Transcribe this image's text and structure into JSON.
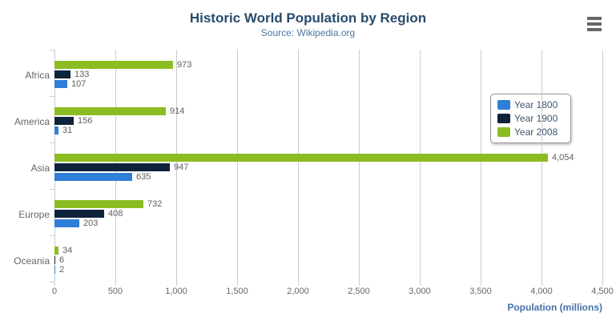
{
  "header": {
    "title": "Historic World Population by Region",
    "subtitle": "Source: Wikipedia.org",
    "menu_icon": "hamburger-icon"
  },
  "chart_data": {
    "type": "bar",
    "orientation": "horizontal",
    "title": "Historic World Population by Region",
    "subtitle": "Source: Wikipedia.org",
    "categories": [
      "Africa",
      "America",
      "Asia",
      "Europe",
      "Oceania"
    ],
    "series": [
      {
        "name": "Year 1800",
        "color": "#2f7ed8",
        "values": [
          107,
          31,
          635,
          203,
          2
        ]
      },
      {
        "name": "Year 1900",
        "color": "#0d233a",
        "values": [
          133,
          156,
          947,
          408,
          6
        ]
      },
      {
        "name": "Year 2008",
        "color": "#8bbc21",
        "values": [
          973,
          914,
          4054,
          732,
          34
        ]
      }
    ],
    "bar_order_top_to_bottom": [
      "Year 2008",
      "Year 1900",
      "Year 1800"
    ],
    "data_labels_shown": true,
    "xlabel": "Population (millions)",
    "ylabel": "",
    "xlim": [
      0,
      4500
    ],
    "tick_interval": 500,
    "tick_labels": [
      "0",
      "500",
      "1,000",
      "1,500",
      "2,000",
      "2,500",
      "3,000",
      "3,500",
      "4,000",
      "4,500"
    ],
    "grid": true,
    "legend_position": "right"
  },
  "colors": {
    "title": "#274b6d",
    "subtitle": "#4d759e",
    "axis_title": "#4572a7",
    "axis_line": "#c0d0e0",
    "gridline": "#cccccc",
    "data_label": "#606060",
    "tick_label": "#666666",
    "legend_text": "#3e576f",
    "menu_icon": "#666666"
  }
}
